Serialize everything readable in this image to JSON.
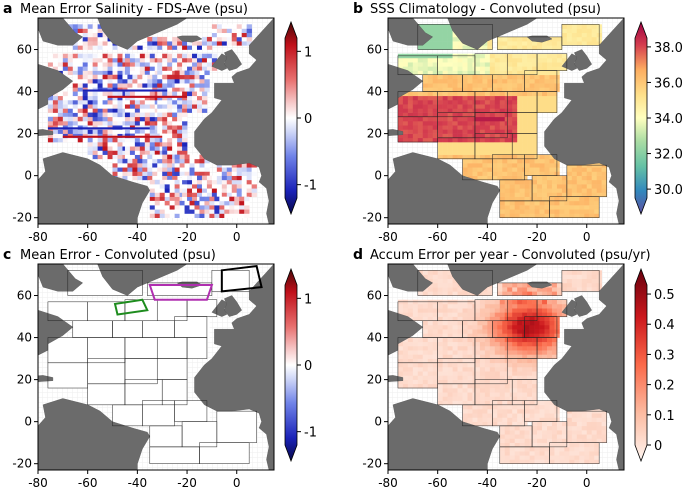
{
  "chart_data": [
    {
      "type": "heatmap",
      "panel_label": "a",
      "title": "Mean Error Salinity - FDS-Ave (psu)",
      "colormap": "diverging",
      "x_ticks": [
        "-80",
        "-60",
        "-40",
        "-20",
        "0"
      ],
      "y_ticks": [
        "-20",
        "0",
        "20",
        "40",
        "60"
      ],
      "xlim": [
        -80,
        15
      ],
      "ylim": [
        -23,
        75
      ],
      "colorbar": {
        "range": [
          -1.2,
          1.2
        ],
        "ticks": [
          "1",
          "0",
          "-1"
        ],
        "tick_values": [
          1,
          0,
          -1
        ]
      }
    },
    {
      "type": "heatmap",
      "panel_label": "b",
      "title": "SSS Climatology - Convoluted (psu)",
      "colormap": "spectral",
      "x_ticks": [
        "-80",
        "-60",
        "-40",
        "-20",
        "0"
      ],
      "y_ticks": [
        "-20",
        "0",
        "20",
        "40",
        "60"
      ],
      "xlim": [
        -80,
        15
      ],
      "ylim": [
        -23,
        75
      ],
      "colorbar": {
        "range": [
          29.5,
          38.5
        ],
        "ticks": [
          "38.0",
          "36.0",
          "34.0",
          "32.0",
          "30.0"
        ],
        "tick_values": [
          38,
          36,
          34,
          32,
          30
        ]
      }
    },
    {
      "type": "heatmap",
      "panel_label": "c",
      "title": "Mean Error - Convoluted (psu)",
      "colormap": "diverging",
      "x_ticks": [
        "-80",
        "-60",
        "-40",
        "-20",
        "0"
      ],
      "y_ticks": [
        "-20",
        "0",
        "20",
        "40",
        "60"
      ],
      "xlim": [
        -80,
        15
      ],
      "ylim": [
        -23,
        75
      ],
      "colorbar": {
        "range": [
          -1.2,
          1.2
        ],
        "ticks": [
          "1",
          "0",
          "-1"
        ],
        "tick_values": [
          1,
          0,
          -1
        ]
      }
    },
    {
      "type": "heatmap",
      "panel_label": "d",
      "title": "Accum Error per year - Convoluted (psu/yr)",
      "colormap": "reds",
      "x_ticks": [
        "-80",
        "-60",
        "-40",
        "-20",
        "0"
      ],
      "y_ticks": [
        "-20",
        "0",
        "20",
        "40",
        "60"
      ],
      "xlim": [
        -80,
        15
      ],
      "ylim": [
        -23,
        75
      ],
      "colorbar": {
        "range": [
          0,
          0.53
        ],
        "ticks": [
          "0.5",
          "0.4",
          "0.3",
          "0.2",
          "0.1",
          "0"
        ],
        "tick_values": [
          0.5,
          0.4,
          0.3,
          0.2,
          0.1,
          0
        ]
      }
    }
  ],
  "colors": {
    "land": "#6b6b6b",
    "ocean": "#ffffff",
    "box_outline": "#222222",
    "highlight_black": "#000000",
    "highlight_magenta": "#b030b0",
    "highlight_green": "#1e8c1e"
  }
}
